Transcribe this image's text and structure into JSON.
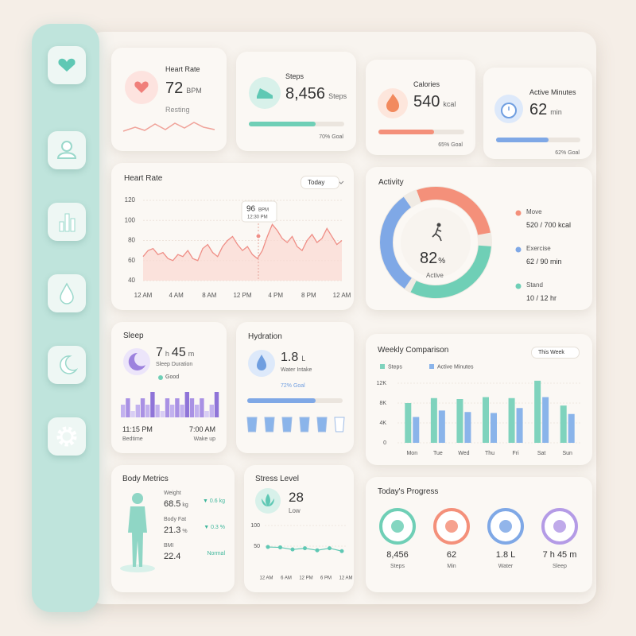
{
  "heart_rate": {
    "title": "Heart Rate",
    "value": "72",
    "unit": "BPM",
    "status": "Resting"
  },
  "steps": {
    "title": "Steps",
    "value": "8,456",
    "unit": "Steps",
    "progress": 70,
    "goal": "70% Goal"
  },
  "calories": {
    "title": "Calories",
    "value": "540",
    "unit": "kcal",
    "progress": 65,
    "goal": "65% Goal"
  },
  "active_minutes": {
    "title": "Active Minutes",
    "value": "62",
    "unit": "min",
    "progress": 62,
    "goal": "62% Goal"
  },
  "heart_chart": {
    "title": "Heart Rate",
    "range": "Today",
    "ylim": [
      40,
      120
    ],
    "yticks": [
      40,
      60,
      80,
      100,
      120
    ],
    "x_labels": [
      "12 AM",
      "4 AM",
      "8 AM",
      "12 PM",
      "4 PM",
      "8 PM",
      "12 AM"
    ],
    "values": [
      64,
      70,
      72,
      66,
      68,
      62,
      60,
      66,
      64,
      70,
      62,
      60,
      72,
      76,
      68,
      64,
      74,
      80,
      84,
      76,
      70,
      74,
      66,
      62,
      70,
      84,
      96,
      90,
      82,
      78,
      84,
      74,
      70,
      80,
      86,
      78,
      82,
      92,
      84,
      76,
      80
    ],
    "tooltip": {
      "value": "96",
      "unit": "BPM",
      "time": "12:30 PM"
    }
  },
  "activity": {
    "title": "Activity",
    "percent": "82",
    "percent_unit": "%",
    "label": "Active",
    "items": [
      {
        "name": "Move",
        "value": "520 / 700 kcal",
        "color": "#f4907a"
      },
      {
        "name": "Exercise",
        "value": "62 / 90 min",
        "color": "#7fa8e6"
      },
      {
        "name": "Stand",
        "value": "10 / 12 hr",
        "color": "#6fcfb6"
      }
    ]
  },
  "sleep": {
    "title": "Sleep",
    "hours": "7",
    "hours_unit": "h",
    "minutes": "45",
    "minutes_unit": "m",
    "label": "Sleep Duration",
    "quality": "Good",
    "stages": [
      2,
      3,
      1,
      2,
      3,
      2,
      4,
      2,
      1,
      3,
      2,
      3,
      2,
      4,
      3,
      2,
      3,
      1,
      2,
      4
    ],
    "bedtime": "11:15 PM",
    "bedtime_label": "Bedtime",
    "wake": "7:00 AM",
    "wake_label": "Wake up"
  },
  "hydration": {
    "title": "Hydration",
    "value": "1.8",
    "unit": "L",
    "label": "Water Intake",
    "progress": 72,
    "goal": "72% Goal"
  },
  "weekly": {
    "title": "Weekly Comparison",
    "range": "This Week",
    "ylim": [
      0,
      13000
    ],
    "yticks": [
      0,
      {
        "value": 4000,
        "label": "4K"
      },
      {
        "value": 8000,
        "label": "8K"
      },
      {
        "value": 12000,
        "label": "12K"
      }
    ],
    "categories": [
      "Mon",
      "Tue",
      "Wed",
      "Thu",
      "Fri",
      "Sat",
      "Sun"
    ],
    "series": [
      {
        "name": "Steps",
        "color": "#7fd3bd",
        "values": [
          8000,
          9000,
          8800,
          9200,
          9000,
          12500,
          7500
        ]
      },
      {
        "name": "Active Minutes",
        "color": "#8ab4ea",
        "values": [
          5200,
          6500,
          6200,
          6000,
          7000,
          9200,
          5800
        ]
      }
    ]
  },
  "body": {
    "title": "Body Metrics",
    "metrics": [
      {
        "name": "Weight",
        "value": "68.5",
        "unit": "kg",
        "change": "▼ 0.6 kg"
      },
      {
        "name": "Body Fat",
        "value": "21.3",
        "unit": "%",
        "change": "▼ 0.3 %"
      },
      {
        "name": "BMI",
        "value": "22.4",
        "change": "Normal"
      }
    ]
  },
  "stress": {
    "title": "Stress Level",
    "value": "28",
    "label": "Low",
    "ylim": [
      0,
      110
    ],
    "yticks": [
      50,
      100
    ],
    "x_labels": [
      "12 AM",
      "6 AM",
      "12 PM",
      "6 PM",
      "12 AM"
    ],
    "values": [
      48,
      47,
      42,
      45,
      40,
      45,
      38
    ]
  },
  "progress": {
    "title": "Today's Progress",
    "items": [
      {
        "value": "8,456",
        "label": "Steps",
        "color": "#6fcfb6"
      },
      {
        "value": "62",
        "label": "Min",
        "color": "#f4907a"
      },
      {
        "value": "1.8 L",
        "label": "Water",
        "color": "#7fa8e6"
      },
      {
        "value": "7 h 45 m",
        "label": "Sleep",
        "color": "#b49be6"
      }
    ]
  }
}
